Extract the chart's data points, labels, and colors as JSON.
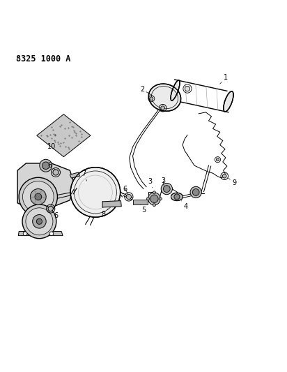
{
  "title_text": "8325 1000 A",
  "background_color": "#ffffff",
  "line_color": "#000000",
  "label_color": "#000000",
  "fig_width": 4.12,
  "fig_height": 5.33,
  "dpi": 100
}
